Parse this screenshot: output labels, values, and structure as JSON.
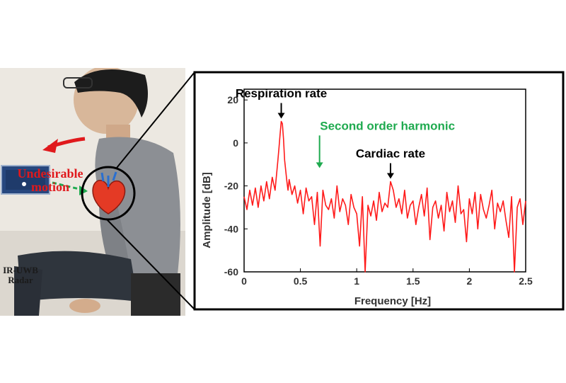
{
  "photo": {
    "motion_label": "Undesirable motion",
    "radar_label": "IR-UWB Radar"
  },
  "colors": {
    "signal": "#ff1a1a",
    "motion_arrow": "#e0191c",
    "harmonic": "#1faa4f",
    "frame": "#000000"
  },
  "chart_data": {
    "type": "line",
    "xlabel": "Frequency [Hz]",
    "ylabel": "Amplitude [dB]",
    "xlim": [
      0,
      2.5
    ],
    "ylim": [
      -60,
      25
    ],
    "xticks": [
      "0",
      "0.5",
      "1",
      "1.5",
      "2",
      "2.5"
    ],
    "yticks": [
      "20",
      "0",
      "-20",
      "-40",
      "-60"
    ],
    "grid": false,
    "series": [
      {
        "x": [
          0,
          0.025,
          0.05,
          0.075,
          0.1,
          0.125,
          0.15,
          0.175,
          0.2,
          0.225,
          0.25,
          0.275,
          0.3,
          0.31,
          0.32,
          0.33,
          0.34,
          0.35,
          0.36,
          0.37,
          0.38,
          0.39,
          0.4,
          0.425,
          0.45,
          0.475,
          0.5,
          0.525,
          0.55,
          0.575,
          0.6,
          0.625,
          0.65,
          0.675,
          0.7,
          0.725,
          0.75,
          0.775,
          0.8,
          0.825,
          0.85,
          0.875,
          0.9,
          0.925,
          0.95,
          0.975,
          1,
          1.025,
          1.05,
          1.075,
          1.1,
          1.125,
          1.15,
          1.175,
          1.2,
          1.225,
          1.25,
          1.275,
          1.3,
          1.325,
          1.35,
          1.375,
          1.4,
          1.425,
          1.45,
          1.475,
          1.5,
          1.525,
          1.55,
          1.575,
          1.6,
          1.625,
          1.65,
          1.675,
          1.7,
          1.725,
          1.75,
          1.775,
          1.8,
          1.825,
          1.85,
          1.875,
          1.9,
          1.925,
          1.95,
          1.975,
          2,
          2.025,
          2.05,
          2.075,
          2.1,
          2.125,
          2.15,
          2.175,
          2.2,
          2.225,
          2.25,
          2.275,
          2.3,
          2.325,
          2.35,
          2.375,
          2.4,
          2.425,
          2.45,
          2.475,
          2.5
        ],
        "y": [
          -25,
          -31,
          -22,
          -29,
          -21,
          -30,
          -20,
          -27,
          -18,
          -26,
          -16,
          -22,
          -8,
          -2,
          4,
          10,
          9,
          2,
          -8,
          -13,
          -18,
          -22,
          -17,
          -24,
          -20,
          -28,
          -22,
          -33,
          -21,
          -27,
          -25,
          -38,
          -23,
          -48,
          -22,
          -29,
          -31,
          -26,
          -35,
          -20,
          -32,
          -26,
          -29,
          -38,
          -24,
          -30,
          -33,
          -48,
          -25,
          -61,
          -29,
          -34,
          -27,
          -36,
          -23,
          -32,
          -28,
          -30,
          -18,
          -22,
          -30,
          -26,
          -33,
          -22,
          -35,
          -29,
          -27,
          -38,
          -30,
          -24,
          -34,
          -21,
          -45,
          -30,
          -27,
          -35,
          -29,
          -41,
          -23,
          -32,
          -27,
          -37,
          -20,
          -33,
          -31,
          -46,
          -26,
          -33,
          -23,
          -40,
          -24,
          -31,
          -35,
          -29,
          -22,
          -40,
          -28,
          -32,
          -27,
          -36,
          -44,
          -25,
          -61,
          -30,
          -26,
          -38,
          -27
        ]
      }
    ],
    "annotations": [
      {
        "text": "Respiration rate",
        "x": 0.33,
        "y": 10,
        "color": "#000000"
      },
      {
        "text": "Second order harmonic",
        "x": 0.67,
        "y": -13,
        "color": "#1faa4f"
      },
      {
        "text": "Cardiac rate",
        "x": 1.3,
        "y": -18,
        "color": "#000000"
      }
    ]
  }
}
